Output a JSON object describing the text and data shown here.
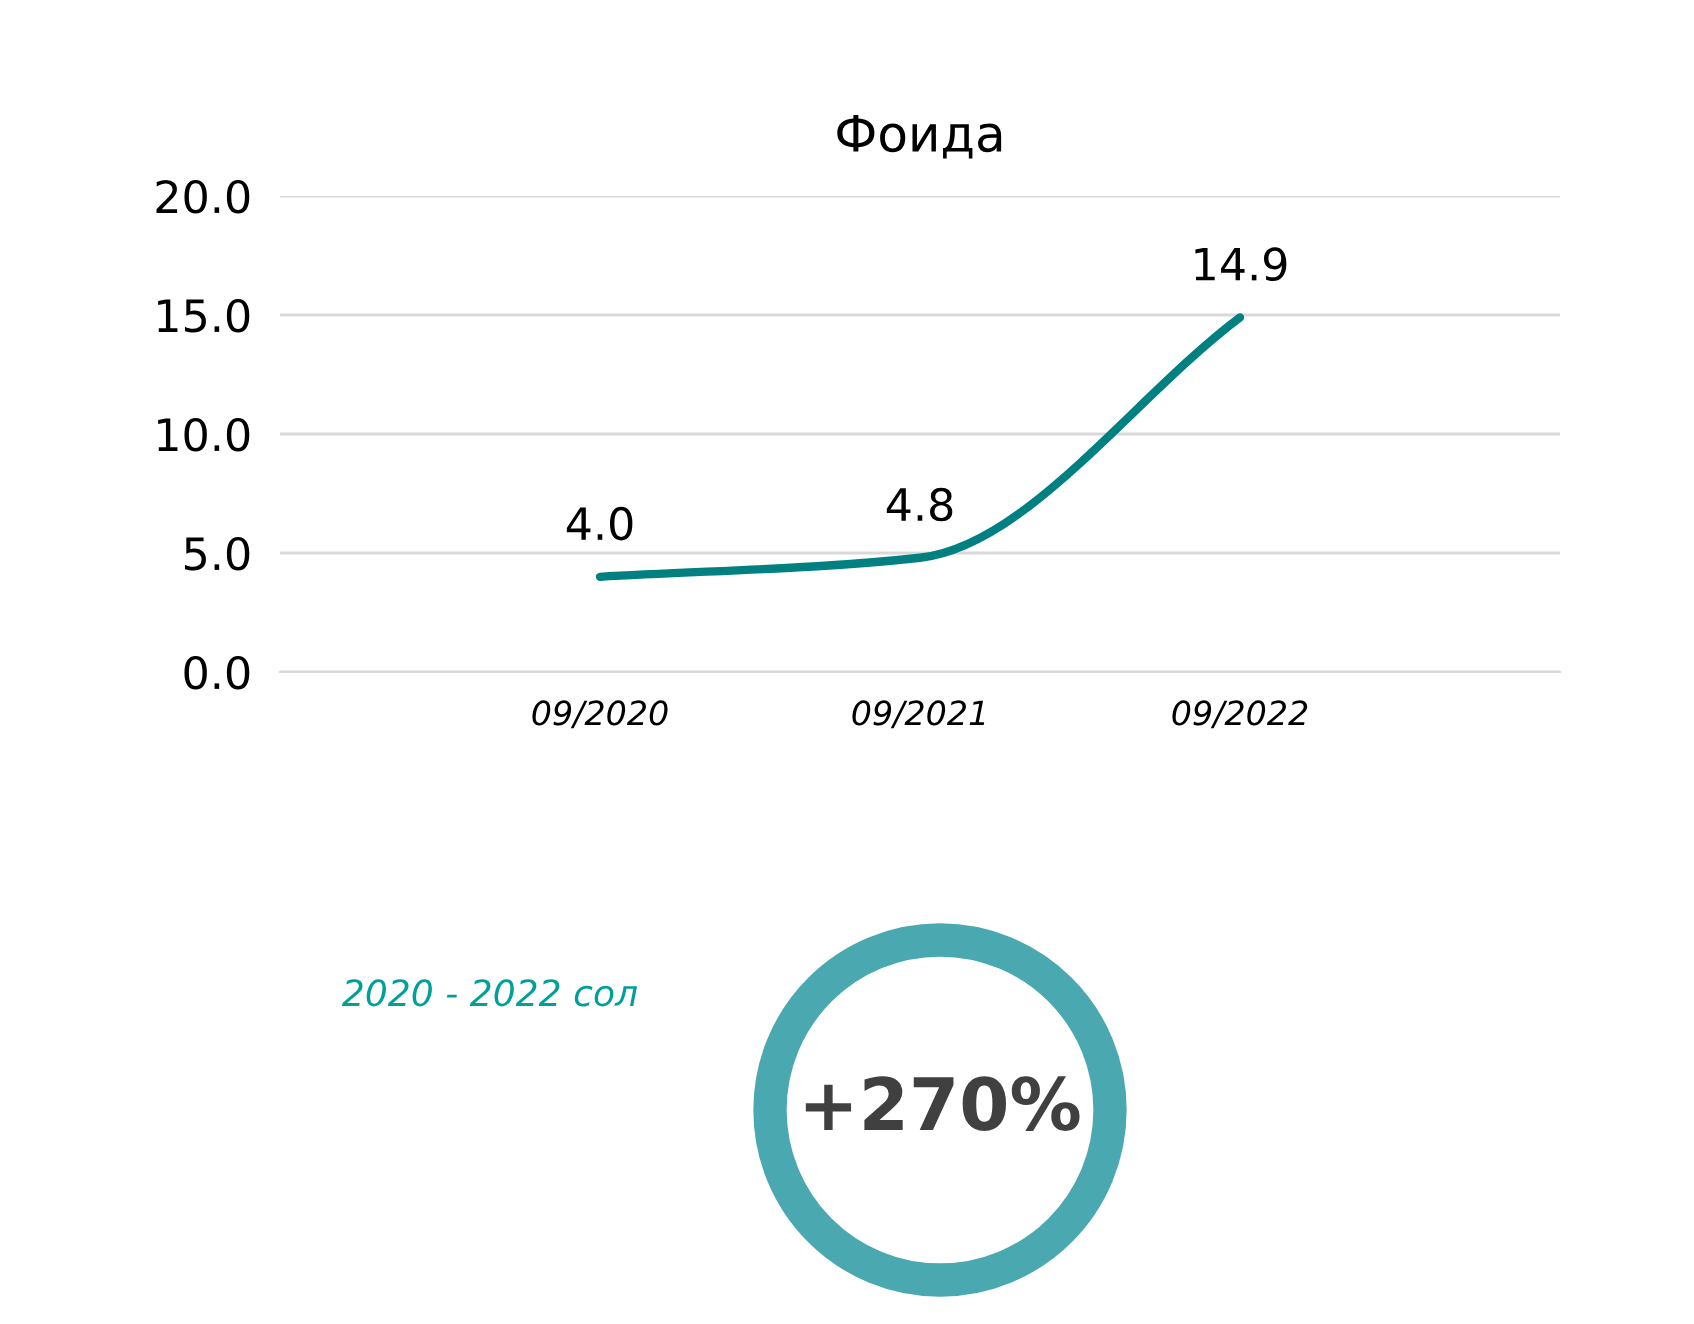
{
  "chart_data": {
    "type": "line",
    "title": "Фоида",
    "categories": [
      "09/2020",
      "09/2021",
      "09/2022"
    ],
    "series": [
      {
        "color": "#008080",
        "values": [
          4.0,
          4.8,
          14.9
        ],
        "value_labels": [
          "4.0",
          "4.8",
          "14.9"
        ]
      }
    ],
    "ylim": [
      0,
      20
    ],
    "yticks": [
      {
        "value": 0,
        "label": "0.0"
      },
      {
        "value": 5,
        "label": "5.0"
      },
      {
        "value": 10,
        "label": "10.0"
      },
      {
        "value": 15,
        "label": "15.0"
      },
      {
        "value": 20,
        "label": "20.0"
      }
    ],
    "grid": "y",
    "legend": false,
    "marker": "none",
    "line_style": "solid",
    "annotations": [
      "2020 - 2022 сол",
      "+270%"
    ]
  }
}
